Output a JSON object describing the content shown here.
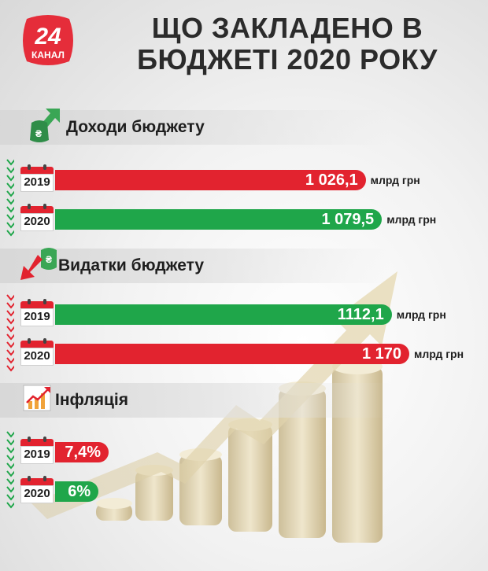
{
  "title_line1": "ЩО ЗАКЛАДЕНО В",
  "title_line2": "БЮДЖЕТІ 2020 РОКУ",
  "logo": {
    "number": "24",
    "word": "КАНАЛ",
    "color": "#e52d3a"
  },
  "colors": {
    "red": "#e2232f",
    "green": "#1fa64a",
    "icon_red": "#e2232f",
    "icon_green": "#3aa655"
  },
  "chart_data": [
    {
      "type": "bar",
      "title": "Доходи бюджету",
      "categories": [
        "2019",
        "2020"
      ],
      "values": [
        1026.1,
        1079.5
      ],
      "value_labels": [
        "1 026,1",
        "1 079,5"
      ],
      "unit": "млрд грн",
      "colors": [
        "#e2232f",
        "#1fa64a"
      ]
    },
    {
      "type": "bar",
      "title": "Видатки бюджету",
      "categories": [
        "2019",
        "2020"
      ],
      "values": [
        1112.1,
        1170
      ],
      "value_labels": [
        "1112,1",
        "1 170"
      ],
      "unit": "млрд грн",
      "colors": [
        "#1fa64a",
        "#e2232f"
      ]
    },
    {
      "type": "bar",
      "title": "Інфляція",
      "categories": [
        "2019",
        "2020"
      ],
      "values": [
        7.4,
        6
      ],
      "value_labels": [
        "7,4%",
        "6%"
      ],
      "unit": "",
      "colors": [
        "#e2232f",
        "#1fa64a"
      ]
    }
  ]
}
